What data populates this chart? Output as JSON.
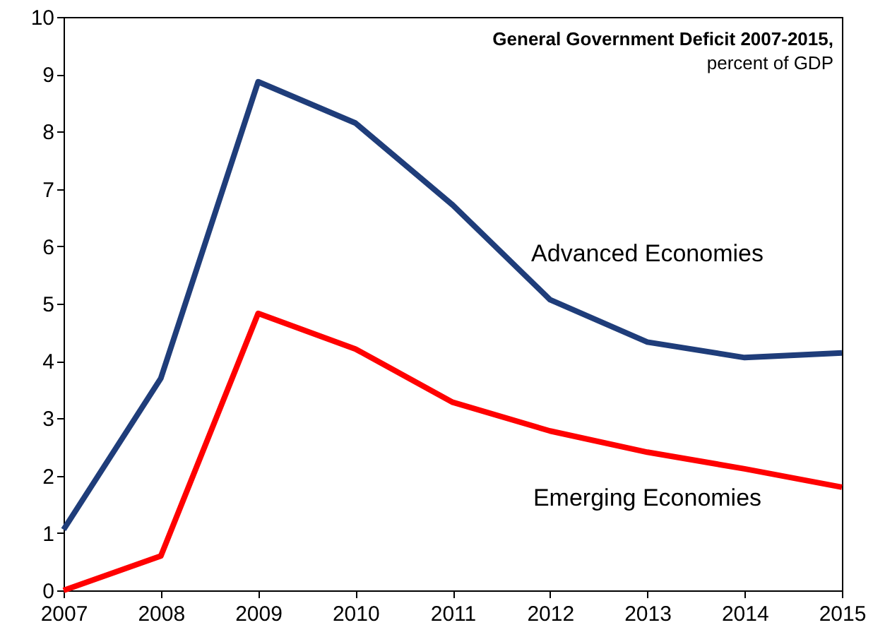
{
  "chart_data": {
    "type": "line",
    "title": "General Government  Deficit 2007-2015,",
    "subtitle": "percent of GDP",
    "x": [
      2007,
      2008,
      2009,
      2010,
      2011,
      2012,
      2013,
      2014,
      2015
    ],
    "series": [
      {
        "name": "Advanced Economies",
        "color": "#1f3d7a",
        "values": [
          1.06,
          3.7,
          8.87,
          8.15,
          6.72,
          5.07,
          4.33,
          4.06,
          4.14
        ]
      },
      {
        "name": "Emerging Economies",
        "color": "#ff0000",
        "values": [
          0,
          0.6,
          4.83,
          4.21,
          3.28,
          2.78,
          2.41,
          2.12,
          1.8
        ]
      }
    ],
    "xlim": [
      2007,
      2015
    ],
    "xticks": [
      2007,
      2008,
      2009,
      2010,
      2011,
      2012,
      2013,
      2014,
      2015
    ],
    "ylim": [
      0,
      10
    ],
    "yticks": [
      0,
      1,
      2,
      3,
      4,
      5,
      6,
      7,
      8,
      9,
      10
    ],
    "grid": false,
    "marker": "none",
    "line_style": "solid"
  }
}
